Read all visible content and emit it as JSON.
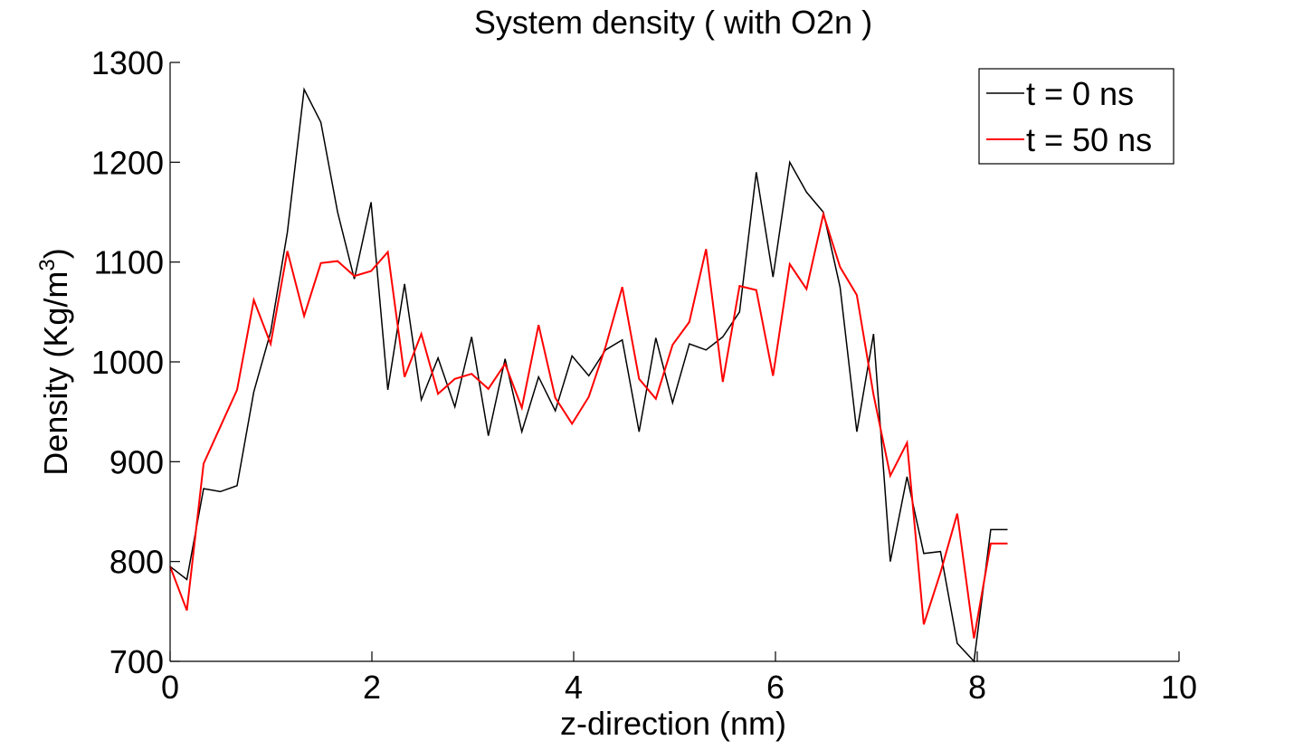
{
  "chart_data": {
    "type": "line",
    "title": "System density ( with O2n )",
    "xlabel": "z-direction (nm)",
    "ylabel": "Density (Kg/m",
    "ylabel_superscript": "3",
    "ylabel_suffix": ")",
    "xlim": [
      0,
      10
    ],
    "ylim": [
      700,
      1300
    ],
    "xticks": [
      0,
      2,
      4,
      6,
      8,
      10
    ],
    "yticks": [
      700,
      800,
      900,
      1000,
      1100,
      1200,
      1300
    ],
    "grid": false,
    "legend_position": "top-right",
    "x": [
      0,
      0.166,
      0.332,
      0.498,
      0.664,
      0.83,
      0.996,
      1.162,
      1.328,
      1.494,
      1.66,
      1.826,
      1.992,
      2.158,
      2.324,
      2.49,
      2.656,
      2.822,
      2.988,
      3.154,
      3.32,
      3.486,
      3.652,
      3.818,
      3.984,
      4.15,
      4.316,
      4.482,
      4.648,
      4.814,
      4.98,
      5.146,
      5.312,
      5.478,
      5.644,
      5.81,
      5.976,
      6.142,
      6.308,
      6.474,
      6.64,
      6.806,
      6.972,
      7.138,
      7.304,
      7.47,
      7.636,
      7.802,
      7.968,
      8.134,
      8.3
    ],
    "series": [
      {
        "name": "t = 0 ns",
        "color": "#000000",
        "values": [
          795,
          782,
          873,
          870,
          876,
          970,
          1030,
          1130,
          1273,
          1240,
          1150,
          1083,
          1160,
          972,
          1078,
          962,
          1004,
          955,
          1025,
          926,
          1003,
          930,
          985,
          951,
          1006,
          986,
          1012,
          1022,
          930,
          1024,
          959,
          1018,
          1012,
          1025,
          1050,
          1190,
          1085,
          1200,
          1170,
          1150,
          1075,
          930,
          1028,
          800,
          885,
          808,
          810,
          718,
          700,
          832,
          832
        ]
      },
      {
        "name": "t = 50 ns",
        "color": "#ff0000",
        "values": [
          795,
          751,
          898,
          935,
          972,
          1062,
          1018,
          1111,
          1046,
          1099,
          1101,
          1086,
          1091,
          1110,
          985,
          1028,
          968,
          983,
          988,
          973,
          998,
          954,
          1037,
          964,
          938,
          965,
          1015,
          1075,
          983,
          963,
          1017,
          1040,
          1113,
          980,
          1076,
          1072,
          986,
          1098,
          1073,
          1148,
          1095,
          1067,
          967,
          886,
          919,
          737,
          789,
          848,
          723,
          818,
          818
        ]
      }
    ]
  }
}
